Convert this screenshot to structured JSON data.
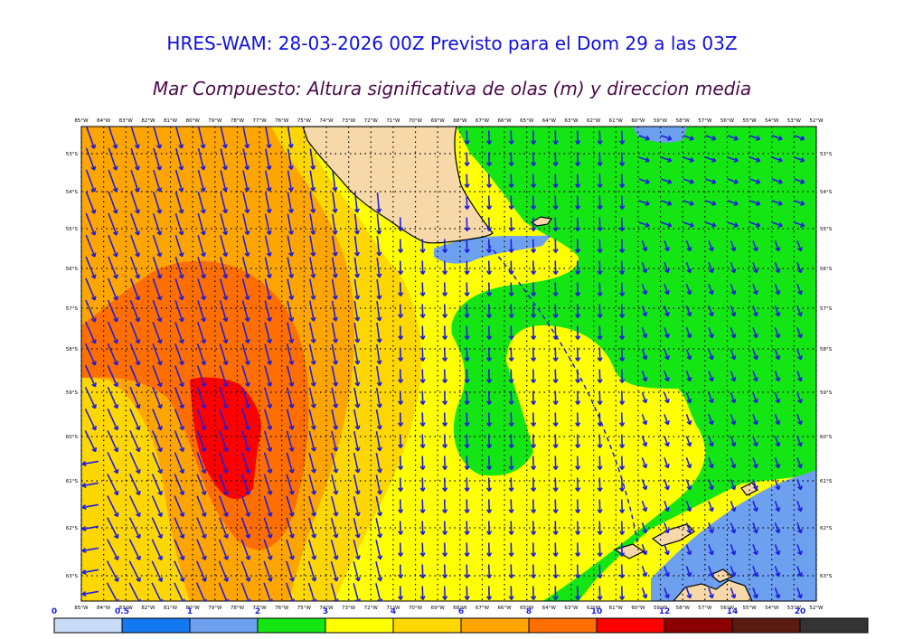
{
  "title": "HRES-WAM: 28-03-2026 00Z Previsto para el Dom 29 a las 03Z",
  "subtitle": "Mar Compuesto: Altura significativa de olas (m) y direccion media",
  "lon_labels": [
    "85°W",
    "84°W",
    "83°W",
    "82°W",
    "81°W",
    "80°W",
    "79°W",
    "78°W",
    "77°W",
    "76°W",
    "75°W",
    "74°W",
    "73°W",
    "72°W",
    "71°W",
    "70°W",
    "69°W",
    "68°W",
    "67°W",
    "66°W",
    "65°W",
    "64°W",
    "63°W",
    "62°W",
    "61°W",
    "60°W",
    "59°W",
    "58°W",
    "57°W",
    "56°W",
    "55°W",
    "54°W",
    "53°W",
    "52°W"
  ],
  "lat_labels": [
    "53°S",
    "54°S",
    "55°S",
    "56°S",
    "57°S",
    "58°S",
    "59°S",
    "60°S",
    "61°S",
    "62°S",
    "63°S"
  ],
  "colorbar": {
    "ticks": [
      "0",
      "0.5",
      "1",
      "2",
      "3",
      "4",
      "6",
      "8",
      "10",
      "12",
      "14",
      "20"
    ],
    "colors": [
      "#c8dcf8",
      "#1478f0",
      "#6ea0f0",
      "#14e614",
      "#ffff00",
      "#ffd700",
      "#ffa500",
      "#ff6e00",
      "#ff0000",
      "#8b0000",
      "#5a1a10",
      "#333333"
    ]
  },
  "map": {
    "land_color": "#f7d8a8",
    "arrow_color": "#1e1ee0",
    "graticule": "dotted"
  }
}
